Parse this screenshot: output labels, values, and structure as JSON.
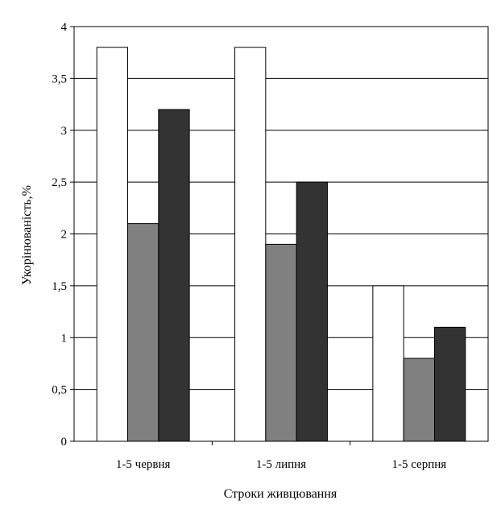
{
  "chart_data": {
    "type": "bar",
    "title": "",
    "xlabel": "Строки живцювання",
    "ylabel": "Укорінюваність,%",
    "categories": [
      "1-5 червня",
      "1-5 липня",
      "1-5 серпня"
    ],
    "series": [
      {
        "values": [
          3.8,
          3.8,
          1.5
        ],
        "color": "#ffffff"
      },
      {
        "values": [
          2.1,
          1.9,
          0.8
        ],
        "color": "#808080"
      },
      {
        "values": [
          3.2,
          2.5,
          1.1
        ],
        "color": "#333333"
      }
    ],
    "ylim": [
      0,
      4
    ],
    "yticks": [
      0,
      0.5,
      1,
      1.5,
      2,
      2.5,
      3,
      3.5,
      4
    ],
    "ytick_labels": [
      "0",
      "0,5",
      "1",
      "1,5",
      "2",
      "2,5",
      "3",
      "3,5",
      "4"
    ],
    "grid": true,
    "legend": "none"
  }
}
